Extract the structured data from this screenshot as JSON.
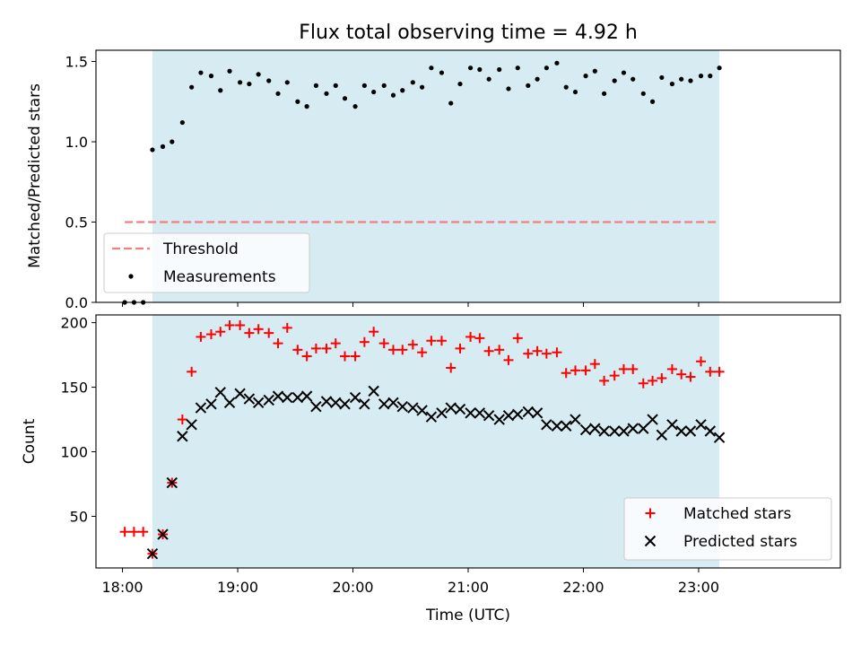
{
  "chart_data": {
    "title": "Flux total observing time = 4.92 h",
    "xlabel": "Time (UTC)",
    "xlim": [
      17.77,
      24.23
    ],
    "xticks": [
      "18:00",
      "19:00",
      "20:00",
      "21:00",
      "22:00",
      "23:00"
    ],
    "xtick_values": [
      18,
      19,
      20,
      21,
      22,
      23
    ],
    "shaded_region": {
      "x0": 18.26,
      "x1": 23.18,
      "color": "#add8e6"
    },
    "top": {
      "type": "scatter",
      "ylabel": "Matched/Predicted stars",
      "ylim": [
        0,
        1.57
      ],
      "yticks": [
        0.0,
        0.5,
        1.0,
        1.5
      ],
      "ytick_labels": [
        "0.0",
        "0.5",
        "1.0",
        "1.5"
      ],
      "threshold": {
        "name": "Threshold",
        "y": 0.5,
        "x0": 18.02,
        "x1": 23.18,
        "color": "#f08080"
      },
      "measurements_name": "Measurements",
      "x": [
        18.02,
        18.1,
        18.18,
        18.26,
        18.35,
        18.43,
        18.52,
        18.6,
        18.68,
        18.77,
        18.85,
        18.93,
        19.02,
        19.1,
        19.18,
        19.27,
        19.35,
        19.43,
        19.52,
        19.6,
        19.68,
        19.77,
        19.85,
        19.93,
        20.02,
        20.1,
        20.18,
        20.27,
        20.35,
        20.43,
        20.52,
        20.6,
        20.68,
        20.77,
        20.85,
        20.93,
        21.02,
        21.1,
        21.18,
        21.27,
        21.35,
        21.43,
        21.52,
        21.6,
        21.68,
        21.77,
        21.85,
        21.93,
        22.02,
        22.1,
        22.18,
        22.27,
        22.35,
        22.43,
        22.52,
        22.6,
        22.68,
        22.77,
        22.85,
        22.93,
        23.02,
        23.1,
        23.18
      ],
      "values": [
        0.0,
        0.0,
        0.0,
        0.95,
        0.97,
        1.0,
        1.12,
        1.34,
        1.43,
        1.41,
        1.32,
        1.44,
        1.37,
        1.36,
        1.42,
        1.38,
        1.3,
        1.37,
        1.25,
        1.22,
        1.35,
        1.3,
        1.35,
        1.27,
        1.22,
        1.35,
        1.31,
        1.35,
        1.29,
        1.32,
        1.37,
        1.34,
        1.46,
        1.43,
        1.24,
        1.36,
        1.46,
        1.45,
        1.39,
        1.45,
        1.33,
        1.46,
        1.35,
        1.39,
        1.46,
        1.49,
        1.34,
        1.31,
        1.41,
        1.44,
        1.3,
        1.38,
        1.43,
        1.39,
        1.3,
        1.25,
        1.4,
        1.36,
        1.39,
        1.38,
        1.41,
        1.41,
        1.46
      ]
    },
    "bottom": {
      "type": "scatter",
      "ylabel": "Count",
      "ylim": [
        10,
        206
      ],
      "yticks": [
        50,
        100,
        150,
        200
      ],
      "ytick_labels": [
        "50",
        "100",
        "150",
        "200"
      ],
      "x": [
        18.02,
        18.1,
        18.18,
        18.26,
        18.35,
        18.43,
        18.52,
        18.6,
        18.68,
        18.77,
        18.85,
        18.93,
        19.02,
        19.1,
        19.18,
        19.27,
        19.35,
        19.43,
        19.52,
        19.6,
        19.68,
        19.77,
        19.85,
        19.93,
        20.02,
        20.1,
        20.18,
        20.27,
        20.35,
        20.43,
        20.52,
        20.6,
        20.68,
        20.77,
        20.85,
        20.93,
        21.02,
        21.1,
        21.18,
        21.27,
        21.35,
        21.43,
        21.52,
        21.6,
        21.68,
        21.77,
        21.85,
        21.93,
        22.02,
        22.1,
        22.18,
        22.27,
        22.35,
        22.43,
        22.52,
        22.6,
        22.68,
        22.77,
        22.85,
        22.93,
        23.02,
        23.1,
        23.18
      ],
      "series": [
        {
          "name": "Matched stars",
          "marker": "plus",
          "color": "#ff0000",
          "values": [
            38,
            38,
            38,
            21,
            36,
            76,
            125,
            162,
            189,
            191,
            193,
            198,
            198,
            192,
            195,
            192,
            184,
            196,
            179,
            174,
            180,
            180,
            184,
            174,
            174,
            185,
            193,
            184,
            179,
            179,
            183,
            177,
            186,
            186,
            165,
            180,
            189,
            188,
            178,
            179,
            171,
            188,
            176,
            178,
            176,
            177,
            161,
            163,
            163,
            168,
            155,
            159,
            164,
            164,
            153,
            155,
            157,
            164,
            160,
            158,
            170,
            162,
            162
          ]
        },
        {
          "name": "Predicted stars",
          "marker": "x",
          "color": "#000000",
          "values": [
            null,
            null,
            null,
            21,
            36,
            76,
            112,
            121,
            134,
            137,
            146,
            138,
            145,
            141,
            138,
            140,
            143,
            142,
            142,
            143,
            135,
            139,
            138,
            137,
            142,
            137,
            147,
            137,
            138,
            135,
            134,
            132,
            127,
            130,
            134,
            133,
            130,
            130,
            128,
            125,
            128,
            129,
            131,
            130,
            121,
            120,
            120,
            125,
            117,
            118,
            116,
            116,
            116,
            118,
            118,
            125,
            113,
            121,
            116,
            116,
            121,
            116,
            111
          ]
        }
      ]
    }
  }
}
